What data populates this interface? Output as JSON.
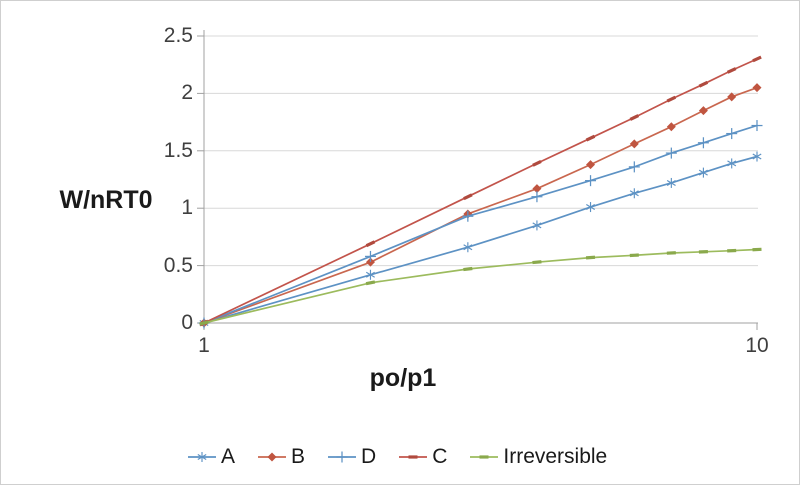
{
  "figure": {
    "background": "#ffffff",
    "border_color": "#cfcfcf"
  },
  "axes": {
    "y_title": "W/nRT0",
    "x_title": "po/p1",
    "y_ticks": [
      "0",
      "0.5",
      "1",
      "1.5",
      "2",
      "2.5"
    ],
    "y_tick_values": [
      0,
      0.5,
      1,
      1.5,
      2,
      2.5
    ],
    "x_ticks": [
      "1",
      "10"
    ],
    "x_tick_values": [
      1,
      10
    ],
    "grid_color": "#d8d8d8",
    "axis_color": "#a0a0a0",
    "tick_label_color": "#3f3f3f"
  },
  "chart_data": {
    "type": "line",
    "x_scale": "log",
    "x": [
      1,
      2,
      3,
      4,
      5,
      6,
      7,
      8,
      9,
      10
    ],
    "xlim": [
      1,
      10
    ],
    "ylim": [
      0,
      2.5
    ],
    "xlabel": "po/p1",
    "ylabel": "W/nRT0",
    "grid": true,
    "legend_position": "bottom",
    "series": [
      {
        "name": "A",
        "marker": "asterisk",
        "color": "#5d92c4",
        "marker_color": "#5d92c4",
        "values": [
          0,
          0.42,
          0.66,
          0.85,
          1.01,
          1.13,
          1.22,
          1.31,
          1.39,
          1.45
        ]
      },
      {
        "name": "B",
        "marker": "diamond",
        "color": "#c9674f",
        "marker_color": "#c05540",
        "values": [
          0,
          0.53,
          0.95,
          1.17,
          1.38,
          1.56,
          1.71,
          1.85,
          1.97,
          2.05
        ]
      },
      {
        "name": "D",
        "marker": "plus",
        "color": "#5d92c4",
        "marker_color": "#5d92c4",
        "values": [
          0,
          0.58,
          0.93,
          1.1,
          1.24,
          1.36,
          1.48,
          1.57,
          1.65,
          1.72
        ]
      },
      {
        "name": "C",
        "marker": "dash",
        "color": "#c2544b",
        "marker_color": "#b04a3e",
        "values": [
          0,
          0.69,
          1.1,
          1.39,
          1.61,
          1.79,
          1.95,
          2.08,
          2.2,
          2.3
        ]
      },
      {
        "name": "Irreversible",
        "marker": "dash",
        "color": "#9cbb5d",
        "marker_color": "#8aa94c",
        "values": [
          0,
          0.35,
          0.47,
          0.53,
          0.57,
          0.59,
          0.61,
          0.62,
          0.63,
          0.64
        ]
      }
    ]
  }
}
